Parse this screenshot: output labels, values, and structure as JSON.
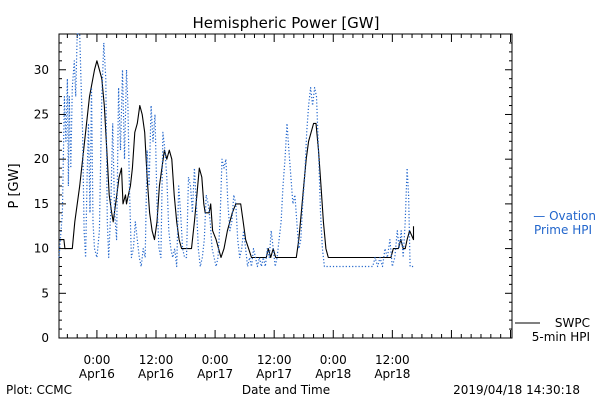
{
  "chart_data": {
    "type": "line",
    "title": "Hemispheric Power [GW]",
    "ylabel": "P [GW]",
    "xlabel": "Date and Time",
    "ylim": [
      0,
      34
    ],
    "xlim_hours": [
      -7.7,
      84.3
    ],
    "y_ticks": [
      0,
      5,
      10,
      15,
      20,
      25,
      30
    ],
    "x_ticks": [
      {
        "hour": 0,
        "time": "0:00",
        "date": "Apr16"
      },
      {
        "hour": 12,
        "time": "12:00",
        "date": "Apr16"
      },
      {
        "hour": 24,
        "time": "0:00",
        "date": "Apr17"
      },
      {
        "hour": 36,
        "time": "12:00",
        "date": "Apr17"
      },
      {
        "hour": 48,
        "time": "0:00",
        "date": "Apr18"
      },
      {
        "hour": 60,
        "time": "12:00",
        "date": "Apr18"
      }
    ],
    "series": [
      {
        "name": "SWPC 5-min HPI",
        "label_line1": "SWPC",
        "label_line2": "5-min HPI",
        "style": "solid",
        "color": "#000000",
        "points": [
          [
            -7.7,
            11
          ],
          [
            -6.7,
            11
          ],
          [
            -6.5,
            10
          ],
          [
            -5,
            10
          ],
          [
            -4.5,
            13
          ],
          [
            -3.5,
            17
          ],
          [
            -2.5,
            22
          ],
          [
            -1.5,
            27
          ],
          [
            -0.5,
            30
          ],
          [
            0,
            31
          ],
          [
            0.5,
            30
          ],
          [
            1,
            29
          ],
          [
            1.5,
            26
          ],
          [
            2,
            21
          ],
          [
            2.5,
            16
          ],
          [
            3,
            14
          ],
          [
            3.3,
            13
          ],
          [
            3.8,
            15
          ],
          [
            4.5,
            18
          ],
          [
            5,
            19
          ],
          [
            5.3,
            15
          ],
          [
            5.8,
            16
          ],
          [
            6,
            15
          ],
          [
            6.4,
            16
          ],
          [
            6.8,
            17
          ],
          [
            7.2,
            19
          ],
          [
            7.7,
            23
          ],
          [
            8.2,
            24
          ],
          [
            8.7,
            26
          ],
          [
            9.2,
            25
          ],
          [
            9.7,
            23
          ],
          [
            10.2,
            18
          ],
          [
            10.7,
            14
          ],
          [
            11.2,
            12
          ],
          [
            11.7,
            11
          ],
          [
            12.2,
            13
          ],
          [
            12.7,
            17
          ],
          [
            13.2,
            19
          ],
          [
            13.7,
            21
          ],
          [
            14.2,
            20
          ],
          [
            14.7,
            21
          ],
          [
            15.2,
            20
          ],
          [
            15.7,
            16
          ],
          [
            16.2,
            13
          ],
          [
            16.7,
            11
          ],
          [
            17.2,
            10
          ],
          [
            19.2,
            10
          ],
          [
            19.8,
            13
          ],
          [
            20.3,
            16
          ],
          [
            20.8,
            19
          ],
          [
            21.3,
            18
          ],
          [
            21.7,
            15
          ],
          [
            22,
            14
          ],
          [
            22.8,
            14
          ],
          [
            23.1,
            15
          ],
          [
            23.5,
            12
          ],
          [
            24.2,
            11
          ],
          [
            25.2,
            9
          ],
          [
            25.8,
            10
          ],
          [
            26.5,
            12
          ],
          [
            27.5,
            14
          ],
          [
            28.2,
            15
          ],
          [
            29.2,
            15
          ],
          [
            29.7,
            13
          ],
          [
            30.2,
            11
          ],
          [
            30.8,
            10
          ],
          [
            31.4,
            9
          ],
          [
            34.4,
            9
          ],
          [
            34.8,
            10
          ],
          [
            35.3,
            9
          ],
          [
            35.8,
            10
          ],
          [
            36.3,
            9
          ],
          [
            40.5,
            9
          ],
          [
            41,
            11
          ],
          [
            41.5,
            14
          ],
          [
            42,
            17
          ],
          [
            42.5,
            20
          ],
          [
            43,
            22
          ],
          [
            43.5,
            23
          ],
          [
            44,
            24
          ],
          [
            44.5,
            24
          ],
          [
            45,
            21
          ],
          [
            45.5,
            17
          ],
          [
            46,
            13
          ],
          [
            46.5,
            10
          ],
          [
            47,
            9
          ],
          [
            59.7,
            9
          ],
          [
            60.2,
            10
          ],
          [
            61.2,
            10
          ],
          [
            61.7,
            11
          ],
          [
            62.2,
            10
          ],
          [
            62.6,
            10
          ],
          [
            63,
            11
          ],
          [
            63.5,
            12
          ],
          [
            64.3,
            11
          ],
          [
            64.3,
            12.5
          ]
        ]
      },
      {
        "name": "Ovation Prime HPI",
        "label_line1": "— Ovation",
        "label_line2": "Prime HPI",
        "style": "dotted",
        "color": "#2266cc",
        "points": [
          [
            -7.7,
            9
          ],
          [
            -7,
            14
          ],
          [
            -6.6,
            27
          ],
          [
            -6.3,
            22
          ],
          [
            -6,
            29
          ],
          [
            -5.8,
            17
          ],
          [
            -5.6,
            27
          ],
          [
            -5.3,
            19
          ],
          [
            -5,
            28
          ],
          [
            -4.6,
            31
          ],
          [
            -4.3,
            27
          ],
          [
            -4,
            34
          ],
          [
            -3.5,
            34
          ],
          [
            -3.2,
            28
          ],
          [
            -2.9,
            23
          ],
          [
            -2.6,
            12
          ],
          [
            -2.3,
            9
          ],
          [
            -2,
            18
          ],
          [
            -1.7,
            24
          ],
          [
            -1.4,
            14
          ],
          [
            -1.1,
            28
          ],
          [
            -0.8,
            13
          ],
          [
            -0.5,
            10
          ],
          [
            0,
            9
          ],
          [
            0.5,
            12
          ],
          [
            1,
            27
          ],
          [
            1.4,
            33
          ],
          [
            1.8,
            29
          ],
          [
            2.1,
            13
          ],
          [
            2.4,
            9
          ],
          [
            2.8,
            14
          ],
          [
            3.2,
            24
          ],
          [
            3.6,
            14
          ],
          [
            4,
            11
          ],
          [
            4.4,
            28
          ],
          [
            4.8,
            21
          ],
          [
            5.2,
            30
          ],
          [
            5.6,
            20
          ],
          [
            6,
            30
          ],
          [
            6.3,
            26
          ],
          [
            6.6,
            17
          ],
          [
            7,
            9
          ],
          [
            7.4,
            10
          ],
          [
            7.8,
            13
          ],
          [
            8.2,
            11
          ],
          [
            8.6,
            9
          ],
          [
            9,
            8
          ],
          [
            9.4,
            10
          ],
          [
            9.8,
            9
          ],
          [
            10.2,
            21
          ],
          [
            10.6,
            17
          ],
          [
            11,
            26
          ],
          [
            11.4,
            22
          ],
          [
            11.8,
            25
          ],
          [
            12.2,
            15
          ],
          [
            12.6,
            10
          ],
          [
            13,
            9
          ],
          [
            13.4,
            23
          ],
          [
            13.8,
            21
          ],
          [
            14.2,
            18
          ],
          [
            14.6,
            12
          ],
          [
            15,
            10
          ],
          [
            15.4,
            9
          ],
          [
            15.8,
            10
          ],
          [
            16.2,
            8
          ],
          [
            16.6,
            17
          ],
          [
            17,
            14
          ],
          [
            17.4,
            10
          ],
          [
            17.8,
            9
          ],
          [
            18.2,
            9
          ],
          [
            18.6,
            18
          ],
          [
            19,
            17
          ],
          [
            19.4,
            14
          ],
          [
            19.8,
            19
          ],
          [
            20.2,
            15
          ],
          [
            20.6,
            10
          ],
          [
            21,
            8
          ],
          [
            21.4,
            9
          ],
          [
            21.8,
            11
          ],
          [
            22.2,
            16
          ],
          [
            22.6,
            15
          ],
          [
            23,
            13
          ],
          [
            23.4,
            10
          ],
          [
            23.8,
            9
          ],
          [
            24.2,
            8
          ],
          [
            24.6,
            9
          ],
          [
            25,
            13
          ],
          [
            25.4,
            20
          ],
          [
            25.8,
            19
          ],
          [
            26.2,
            20
          ],
          [
            26.6,
            15
          ],
          [
            27,
            12
          ],
          [
            27.4,
            13
          ],
          [
            27.8,
            16
          ],
          [
            28.2,
            15
          ],
          [
            28.6,
            11
          ],
          [
            29,
            9
          ],
          [
            29.4,
            10
          ],
          [
            29.8,
            12
          ],
          [
            30.2,
            10
          ],
          [
            30.6,
            8
          ],
          [
            31,
            9
          ],
          [
            31.4,
            8
          ],
          [
            31.8,
            10
          ],
          [
            32.2,
            9
          ],
          [
            32.6,
            8
          ],
          [
            33,
            9
          ],
          [
            33.4,
            8
          ],
          [
            33.8,
            9
          ],
          [
            34.2,
            8
          ],
          [
            34.6,
            10
          ],
          [
            35,
            9
          ],
          [
            35.4,
            12
          ],
          [
            35.8,
            10
          ],
          [
            36.2,
            8
          ],
          [
            36.6,
            9
          ],
          [
            37,
            11
          ],
          [
            37.4,
            13
          ],
          [
            37.8,
            17
          ],
          [
            38.2,
            20
          ],
          [
            38.6,
            24
          ],
          [
            39,
            21
          ],
          [
            39.4,
            18
          ],
          [
            39.8,
            15
          ],
          [
            40.2,
            16
          ],
          [
            40.6,
            13
          ],
          [
            41,
            10
          ],
          [
            41.4,
            11
          ],
          [
            41.8,
            15
          ],
          [
            42.2,
            18
          ],
          [
            42.6,
            23
          ],
          [
            43,
            26
          ],
          [
            43.4,
            28
          ],
          [
            43.8,
            26
          ],
          [
            44.2,
            28
          ],
          [
            44.6,
            27
          ],
          [
            45,
            21
          ],
          [
            45.4,
            14
          ],
          [
            45.8,
            10
          ],
          [
            46.2,
            8
          ],
          [
            46.6,
            8
          ],
          [
            47,
            8
          ],
          [
            50,
            8
          ],
          [
            53,
            8
          ],
          [
            56,
            8
          ],
          [
            56.5,
            9
          ],
          [
            57,
            8
          ],
          [
            57.5,
            9
          ],
          [
            58,
            8
          ],
          [
            58.5,
            10
          ],
          [
            59,
            9
          ],
          [
            59.5,
            11
          ],
          [
            60,
            8
          ],
          [
            60.5,
            9
          ],
          [
            61,
            12
          ],
          [
            61.4,
            10
          ],
          [
            61.8,
            12
          ],
          [
            62.2,
            9
          ],
          [
            62.6,
            13
          ],
          [
            63,
            19
          ],
          [
            63.3,
            16
          ],
          [
            63.6,
            8
          ],
          [
            64,
            8
          ],
          [
            64.3,
            8
          ]
        ]
      }
    ],
    "grid": false,
    "legend": "right-outside"
  },
  "footer": {
    "left": "Plot: CCMC",
    "right": "2019/04/18 14:30:18"
  }
}
